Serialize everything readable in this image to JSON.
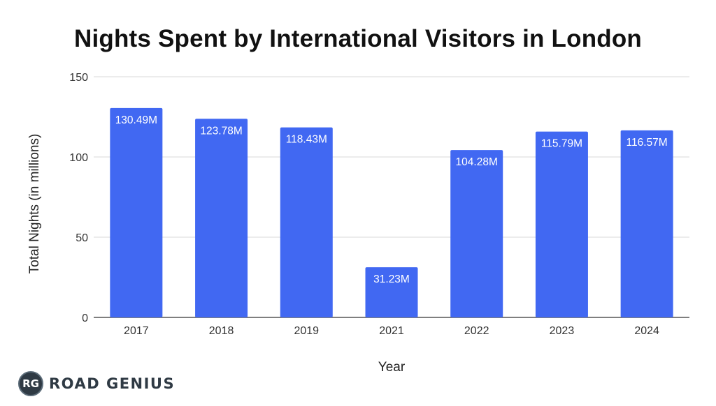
{
  "title": "Nights Spent by International Visitors in London",
  "brand": {
    "badge": "RG",
    "name": "ROAD GENIUS"
  },
  "colors": {
    "bar": "#4168f2",
    "grid": "#d9d9d9",
    "axis": "#333333"
  },
  "chart_data": {
    "type": "bar",
    "title": "Nights Spent by International Visitors in London",
    "xlabel": "Year",
    "ylabel": "Total Nights (in millions)",
    "categories": [
      "2017",
      "2018",
      "2019",
      "2021",
      "2022",
      "2023",
      "2024"
    ],
    "values": [
      130.49,
      123.78,
      118.43,
      31.23,
      104.28,
      115.79,
      116.57
    ],
    "data_labels": [
      "130.49M",
      "123.78M",
      "118.43M",
      "31.23M",
      "104.28M",
      "115.79M",
      "116.57M"
    ],
    "ylim": [
      0,
      150
    ],
    "yticks": [
      0,
      50,
      100,
      150
    ],
    "grid": true,
    "legend": "none"
  }
}
